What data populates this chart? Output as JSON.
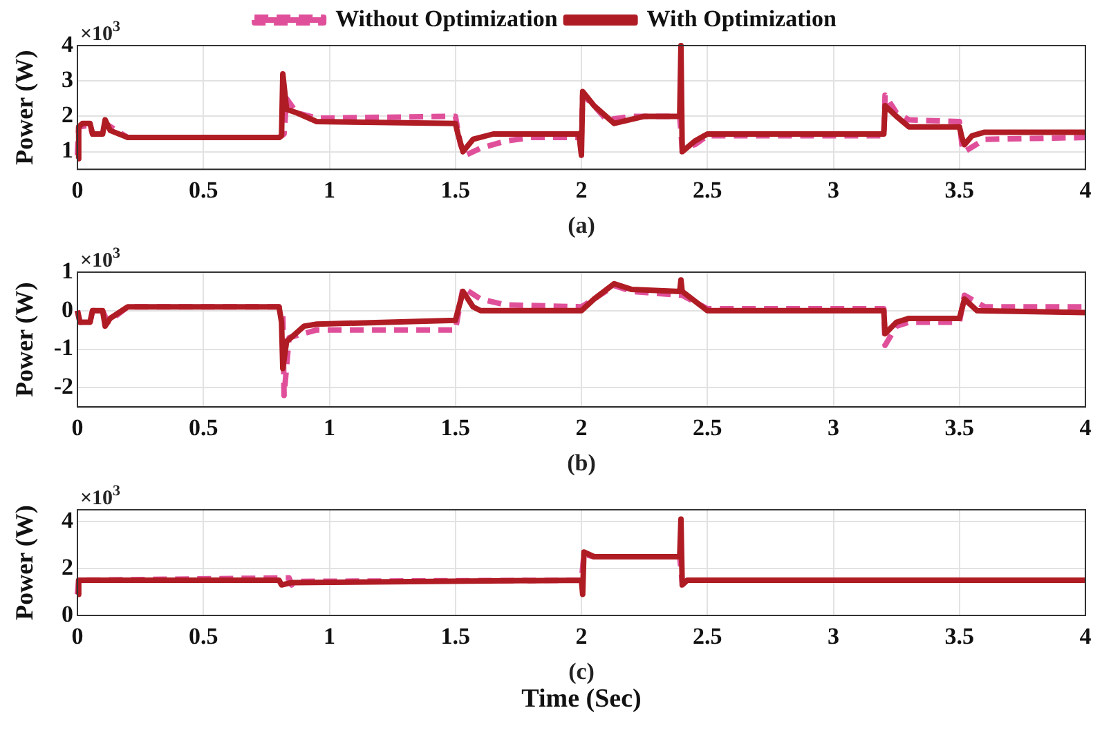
{
  "chart_data": [
    {
      "type": "line",
      "ylabel": "Power (W)",
      "annotations": [
        "×10$^{3}$",
        "(a)"
      ],
      "xlim": [
        0,
        4
      ],
      "xticks": [
        0,
        0.5,
        1,
        1.5,
        2,
        2.5,
        3,
        3.5,
        4
      ],
      "ylim": [
        0.5,
        4
      ],
      "yticks": [
        1,
        2,
        3,
        4
      ],
      "grid": true,
      "legend": "top",
      "marker": "none",
      "series": [
        {
          "name": "Without Optimization",
          "color": "#e0509a",
          "line_style": "dashed",
          "x": [
            0,
            0.005,
            0.05,
            0.06,
            0.1,
            0.11,
            0.2,
            0.8,
            0.82,
            0.83,
            0.87,
            0.95,
            1.5,
            1.52,
            1.54,
            1.6,
            1.7,
            1.8,
            2.0,
            2.005,
            2.05,
            2.1,
            2.2,
            2.39,
            2.4,
            2.45,
            2.5,
            3.2,
            3.205,
            3.25,
            3.3,
            3.5,
            3.51,
            3.52,
            3.6,
            4
          ],
          "values": [
            0.9,
            1.7,
            1.75,
            1.5,
            1.5,
            1.8,
            1.4,
            1.4,
            1.5,
            2.5,
            2.1,
            1.95,
            2.0,
            1.2,
            0.9,
            1.1,
            1.3,
            1.4,
            1.4,
            2.6,
            2.3,
            1.9,
            2.0,
            2.0,
            1.1,
            1.2,
            1.45,
            1.45,
            2.6,
            2.1,
            1.9,
            1.85,
            1.2,
            1.0,
            1.35,
            1.4
          ]
        },
        {
          "name": "With Optimization",
          "color": "#b01c24",
          "line_style": "solid",
          "x": [
            0,
            0.005,
            0.02,
            0.05,
            0.06,
            0.1,
            0.11,
            0.13,
            0.2,
            0.3,
            0.8,
            0.81,
            0.815,
            0.83,
            0.87,
            0.95,
            1.5,
            1.51,
            1.53,
            1.57,
            1.65,
            1.99,
            2.0,
            2.005,
            2.05,
            2.13,
            2.25,
            2.39,
            2.395,
            2.4,
            2.45,
            2.5,
            3.2,
            3.205,
            3.25,
            3.3,
            3.5,
            3.51,
            3.52,
            3.55,
            3.6,
            4
          ],
          "values": [
            0.8,
            1.7,
            1.8,
            1.8,
            1.5,
            1.5,
            1.9,
            1.6,
            1.4,
            1.4,
            1.4,
            1.45,
            3.2,
            2.2,
            2.1,
            1.85,
            1.8,
            1.5,
            1.0,
            1.35,
            1.5,
            1.5,
            0.9,
            2.7,
            2.3,
            1.8,
            2.0,
            2.0,
            4.0,
            1.0,
            1.3,
            1.5,
            1.5,
            2.3,
            2.0,
            1.7,
            1.7,
            1.4,
            1.2,
            1.45,
            1.55,
            1.55
          ]
        }
      ]
    },
    {
      "type": "line",
      "ylabel": "Power (W)",
      "annotations": [
        "×10$^{3}$",
        "(b)"
      ],
      "xlim": [
        0,
        4
      ],
      "xticks": [
        0,
        0.5,
        1,
        1.5,
        2,
        2.5,
        3,
        3.5,
        4
      ],
      "ylim": [
        -2.5,
        1
      ],
      "yticks": [
        -2,
        -1,
        0,
        1
      ],
      "grid": true,
      "marker": "none",
      "series": [
        {
          "color": "#e0509a",
          "line_style": "dashed",
          "x": [
            0,
            0.01,
            0.05,
            0.06,
            0.1,
            0.12,
            0.2,
            0.8,
            0.815,
            0.82,
            0.84,
            0.95,
            1.5,
            1.53,
            1.6,
            1.7,
            2.0,
            2.05,
            2.13,
            2.2,
            2.4,
            2.5,
            3.2,
            3.205,
            3.25,
            3.3,
            3.5,
            3.52,
            3.6,
            4
          ],
          "values": [
            0,
            -0.3,
            -0.3,
            0,
            0,
            -0.3,
            0.1,
            0.1,
            -0.1,
            -2.2,
            -0.7,
            -0.5,
            -0.5,
            0.6,
            0.3,
            0.15,
            0.1,
            0.3,
            0.65,
            0.5,
            0.4,
            0.05,
            0.05,
            -0.9,
            -0.4,
            -0.3,
            -0.3,
            0.4,
            0.1,
            0.1
          ]
        },
        {
          "color": "#b01c24",
          "line_style": "solid",
          "x": [
            0,
            0.01,
            0.05,
            0.06,
            0.1,
            0.11,
            0.13,
            0.2,
            0.8,
            0.81,
            0.815,
            0.83,
            0.9,
            0.95,
            1.5,
            1.53,
            1.57,
            1.6,
            2.0,
            2.05,
            2.13,
            2.2,
            2.39,
            2.395,
            2.4,
            2.5,
            3.2,
            3.205,
            3.25,
            3.3,
            3.5,
            3.52,
            3.57,
            4
          ],
          "values": [
            0,
            -0.3,
            -0.3,
            0,
            0,
            -0.4,
            -0.2,
            0.1,
            0.1,
            -0.3,
            -1.5,
            -0.8,
            -0.4,
            -0.35,
            -0.25,
            0.5,
            0.1,
            0,
            0,
            0.3,
            0.7,
            0.55,
            0.5,
            0.8,
            0.5,
            0,
            0,
            -0.6,
            -0.3,
            -0.2,
            -0.2,
            0.3,
            0,
            -0.05
          ]
        }
      ]
    },
    {
      "type": "line",
      "ylabel": "Power (W)",
      "xlabel": "Time (Sec)",
      "annotations": [
        "×10$^{3}$",
        "(c)"
      ],
      "xlim": [
        0,
        4
      ],
      "xticks": [
        0,
        0.5,
        1,
        1.5,
        2,
        2.5,
        3,
        3.5,
        4
      ],
      "ylim": [
        0,
        4.5
      ],
      "yticks": [
        0,
        2,
        4
      ],
      "grid": true,
      "marker": "none",
      "series": [
        {
          "color": "#e0509a",
          "line_style": "dashed",
          "x": [
            0,
            0.005,
            0.84,
            0.85,
            0.86,
            2.0,
            2.01,
            2.05,
            2.39,
            2.4
          ],
          "values": [
            0.9,
            1.5,
            1.6,
            1.3,
            1.45,
            1.5,
            2.6,
            2.5,
            2.5,
            1.4
          ]
        },
        {
          "color": "#b01c24",
          "line_style": "solid",
          "x": [
            0,
            0.005,
            0.8,
            0.81,
            0.85,
            2.0,
            2.005,
            2.01,
            2.05,
            2.39,
            2.395,
            2.4,
            2.42,
            4
          ],
          "values": [
            0.9,
            1.5,
            1.5,
            1.3,
            1.4,
            1.5,
            0.9,
            2.7,
            2.5,
            2.5,
            4.1,
            1.3,
            1.5,
            1.5
          ]
        }
      ]
    }
  ]
}
